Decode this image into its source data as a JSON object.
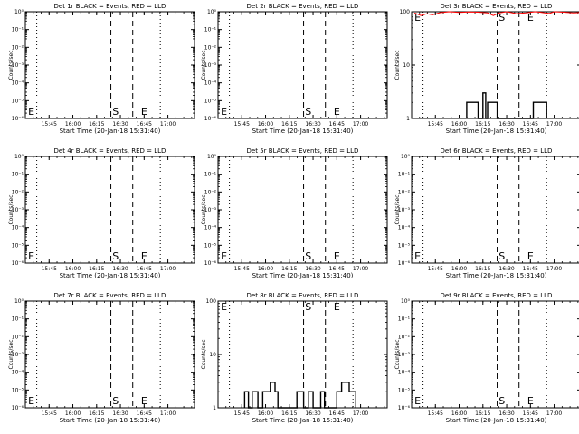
{
  "chart_data": [
    {
      "id": "1r",
      "title": "Det 1r BLACK = Events, RED = LLD",
      "type": "line",
      "scale": "log",
      "yticks": [
        "10⁻⁶",
        "10⁻⁵",
        "10⁻⁴",
        "10⁻³",
        "10⁻²",
        "10⁻¹",
        "10⁰"
      ],
      "ylim": [
        1e-06,
        1
      ],
      "ylabel": "Counts/sec",
      "xticks": [
        "15:45",
        "16:00",
        "16:15",
        "16:30",
        "16:45",
        "17:00"
      ],
      "xlabel": "Start Time (20-Jan-18 15:31:40)",
      "events": [],
      "lld": [],
      "markers": [
        "E",
        "S",
        "E"
      ],
      "dotted_lines": true
    },
    {
      "id": "2r",
      "title": "Det 2r BLACK = Events, RED = LLD",
      "type": "line",
      "scale": "log",
      "yticks": [
        "10⁻⁶",
        "10⁻⁵",
        "10⁻⁴",
        "10⁻³",
        "10⁻²",
        "10⁻¹",
        "10⁰"
      ],
      "ylim": [
        1e-06,
        1
      ],
      "ylabel": "Counts/sec",
      "xticks": [
        "15:45",
        "16:00",
        "16:15",
        "16:30",
        "16:45",
        "17:00"
      ],
      "xlabel": "Start Time (20-Jan-18 15:31:40)",
      "events": [],
      "lld": [],
      "markers": [
        "E",
        "S",
        "E"
      ],
      "dotted_lines": true
    },
    {
      "id": "3r",
      "title": "Det 3r BLACK = Events, RED = LLD",
      "type": "line",
      "scale": "log",
      "yticks": [
        "1",
        "10",
        "100"
      ],
      "ylim": [
        1,
        100
      ],
      "ylabel": "Counts/sec",
      "xticks": [
        "15:45",
        "16:00",
        "16:15",
        "16:30",
        "16:45",
        "17:00"
      ],
      "xlabel": "Start Time (20-Jan-18 15:31:40)",
      "events": [
        [
          16.08,
          1
        ],
        [
          16.08,
          2
        ],
        [
          16.2,
          2
        ],
        [
          16.2,
          1
        ],
        [
          16.25,
          1
        ],
        [
          16.25,
          3
        ],
        [
          16.28,
          3
        ],
        [
          16.28,
          1
        ],
        [
          16.3,
          1
        ],
        [
          16.3,
          2
        ],
        [
          16.4,
          2
        ],
        [
          16.4,
          1
        ],
        [
          16.78,
          1
        ],
        [
          16.78,
          2
        ],
        [
          16.92,
          2
        ],
        [
          16.92,
          1
        ]
      ],
      "lld": [
        [
          15.53,
          95
        ],
        [
          15.6,
          85
        ],
        [
          15.66,
          92
        ],
        [
          15.72,
          88
        ],
        [
          15.8,
          96
        ],
        [
          15.9,
          100
        ],
        [
          16.0,
          97
        ],
        [
          16.1,
          99
        ],
        [
          16.2,
          98
        ],
        [
          16.3,
          95
        ],
        [
          16.36,
          85
        ],
        [
          16.42,
          95
        ],
        [
          16.5,
          100
        ],
        [
          16.55,
          96
        ],
        [
          16.6,
          92
        ],
        [
          16.7,
          95
        ],
        [
          16.8,
          100
        ],
        [
          16.85,
          98
        ],
        [
          16.9,
          95
        ],
        [
          16.95,
          93
        ],
        [
          17.0,
          100
        ],
        [
          17.1,
          98
        ],
        [
          17.2,
          95
        ],
        [
          17.28,
          97
        ]
      ],
      "markers": [
        "E",
        "S",
        "E"
      ],
      "dotted_lines": true
    },
    {
      "id": "4r",
      "title": "Det 4r BLACK = Events, RED = LLD",
      "type": "line",
      "scale": "log",
      "yticks": [
        "10⁻⁶",
        "10⁻⁵",
        "10⁻⁴",
        "10⁻³",
        "10⁻²",
        "10⁻¹",
        "10⁰"
      ],
      "ylim": [
        1e-06,
        1
      ],
      "ylabel": "Counts/sec",
      "xticks": [
        "15:45",
        "16:00",
        "16:15",
        "16:30",
        "16:45",
        "17:00"
      ],
      "xlabel": "Start Time (20-Jan-18 15:31:40)",
      "events": [],
      "lld": [],
      "markers": [
        "E",
        "S",
        "E"
      ],
      "dotted_lines": true
    },
    {
      "id": "5r",
      "title": "Det 5r BLACK = Events, RED = LLD",
      "type": "line",
      "scale": "log",
      "yticks": [
        "10⁻⁶",
        "10⁻⁵",
        "10⁻⁴",
        "10⁻³",
        "10⁻²",
        "10⁻¹",
        "10⁰"
      ],
      "ylim": [
        1e-06,
        1
      ],
      "ylabel": "Counts/sec",
      "xticks": [
        "15:45",
        "16:00",
        "16:15",
        "16:30",
        "16:45",
        "17:00"
      ],
      "xlabel": "Start Time (20-Jan-18 15:31:40)",
      "events": [],
      "lld": [],
      "markers": [
        "E",
        "S",
        "E"
      ],
      "dotted_lines": true
    },
    {
      "id": "6r",
      "title": "Det 6r BLACK = Events, RED = LLD",
      "type": "line",
      "scale": "log",
      "yticks": [
        "10⁻⁶",
        "10⁻⁵",
        "10⁻⁴",
        "10⁻³",
        "10⁻²",
        "10⁻¹",
        "10⁰"
      ],
      "ylim": [
        1e-06,
        1
      ],
      "ylabel": "Counts/sec",
      "xticks": [
        "15:45",
        "16:00",
        "16:15",
        "16:30",
        "16:45",
        "17:00"
      ],
      "xlabel": "Start Time (20-Jan-18 15:31:40)",
      "events": [],
      "lld": [],
      "markers": [
        "E",
        "S",
        "E"
      ],
      "dotted_lines": true
    },
    {
      "id": "7r",
      "title": "Det 7r BLACK = Events, RED = LLD",
      "type": "line",
      "scale": "log",
      "yticks": [
        "10⁻⁶",
        "10⁻⁵",
        "10⁻⁴",
        "10⁻³",
        "10⁻²",
        "10⁻¹",
        "10⁰"
      ],
      "ylim": [
        1e-06,
        1
      ],
      "ylabel": "Counts/sec",
      "xticks": [
        "15:45",
        "16:00",
        "16:15",
        "16:30",
        "16:45",
        "17:00"
      ],
      "xlabel": "Start Time (20-Jan-18 15:31:40)",
      "events": [],
      "lld": [],
      "markers": [
        "E",
        "S",
        "E"
      ],
      "dotted_lines": true
    },
    {
      "id": "8r",
      "title": "Det 8r BLACK = Events, RED = LLD",
      "type": "line",
      "scale": "log",
      "yticks": [
        "1",
        "10",
        "100"
      ],
      "ylim": [
        1,
        100
      ],
      "ylabel": "Counts/sec",
      "xticks": [
        "15:45",
        "16:00",
        "16:15",
        "16:30",
        "16:45",
        "17:00"
      ],
      "xlabel": "Start Time (20-Jan-18 15:31:40)",
      "events": [
        [
          15.78,
          1
        ],
        [
          15.78,
          2
        ],
        [
          15.82,
          2
        ],
        [
          15.82,
          1
        ],
        [
          15.86,
          1
        ],
        [
          15.86,
          2
        ],
        [
          15.92,
          2
        ],
        [
          15.92,
          1
        ],
        [
          15.97,
          1
        ],
        [
          15.97,
          2
        ],
        [
          16.05,
          2
        ],
        [
          16.05,
          3
        ],
        [
          16.1,
          3
        ],
        [
          16.1,
          2
        ],
        [
          16.13,
          2
        ],
        [
          16.13,
          1
        ],
        [
          16.33,
          1
        ],
        [
          16.33,
          2
        ],
        [
          16.4,
          2
        ],
        [
          16.4,
          1
        ],
        [
          16.45,
          1
        ],
        [
          16.45,
          2
        ],
        [
          16.5,
          2
        ],
        [
          16.5,
          1
        ],
        [
          16.58,
          1
        ],
        [
          16.58,
          2
        ],
        [
          16.62,
          2
        ],
        [
          16.62,
          1
        ],
        [
          16.75,
          1
        ],
        [
          16.75,
          2
        ],
        [
          16.8,
          2
        ],
        [
          16.8,
          3
        ],
        [
          16.88,
          3
        ],
        [
          16.88,
          2
        ],
        [
          16.95,
          2
        ],
        [
          16.95,
          1
        ]
      ],
      "lld": [],
      "markers": [
        "E",
        "S",
        "E"
      ],
      "dotted_lines": true
    },
    {
      "id": "9r",
      "title": "Det 9r BLACK = Events, RED = LLD",
      "type": "line",
      "scale": "log",
      "yticks": [
        "10⁻⁶",
        "10⁻⁵",
        "10⁻⁴",
        "10⁻³",
        "10⁻²",
        "10⁻¹",
        "10⁰"
      ],
      "ylim": [
        1e-06,
        1
      ],
      "ylabel": "Counts/sec",
      "xticks": [
        "15:45",
        "16:00",
        "16:15",
        "16:30",
        "16:45",
        "17:00"
      ],
      "xlabel": "Start Time (20-Jan-18 15:31:40)",
      "events": [],
      "lld": [],
      "markers": [
        "E",
        "S",
        "E"
      ],
      "dotted_lines": true
    }
  ],
  "colors": {
    "events": "#000000",
    "lld": "#ff0000",
    "axes": "#000000",
    "background": "#ffffff"
  }
}
